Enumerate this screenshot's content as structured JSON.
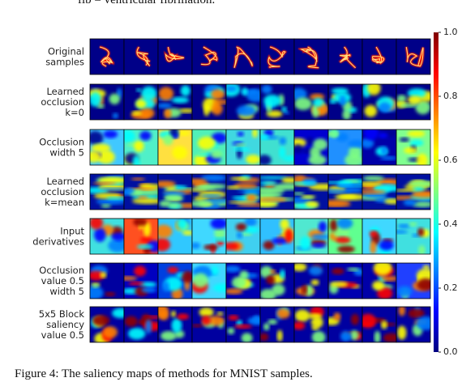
{
  "caption_top": "fib = ventricular fibrillation.",
  "caption_bottom": "Figure 4: The saliency maps of methods for MNIST samples.",
  "rows": [
    {
      "label": [
        "Original",
        "samples"
      ]
    },
    {
      "label": [
        "Learned",
        "occlusion",
        "k=0"
      ]
    },
    {
      "label": [
        "Occlusion",
        "width 5"
      ]
    },
    {
      "label": [
        "Learned",
        "occlusion",
        "k=mean"
      ]
    },
    {
      "label": [
        "Input",
        "derivatives"
      ]
    },
    {
      "label": [
        "Occlusion",
        "value 0.5",
        "width 5"
      ]
    },
    {
      "label": [
        "5x5 Block",
        "saliency",
        "value 0.5"
      ]
    }
  ],
  "colorbar": {
    "lim": [
      0,
      1
    ],
    "ticks": [
      {
        "value": 0,
        "label": "0.0"
      },
      0.2,
      0.4,
      0.6,
      0.8,
      {
        "value": 1,
        "label": "1.0"
      }
    ]
  }
}
